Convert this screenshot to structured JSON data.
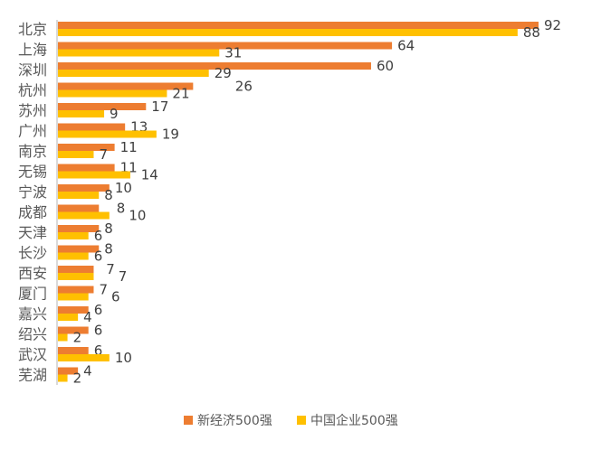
{
  "chart_data": {
    "type": "bar",
    "orientation": "horizontal",
    "categories": [
      "北京",
      "上海",
      "深圳",
      "杭州",
      "苏州",
      "广州",
      "南京",
      "无锡",
      "宁波",
      "成都",
      "天津",
      "长沙",
      "西安",
      "厦门",
      "嘉兴",
      "绍兴",
      "武汉",
      "芜湖"
    ],
    "series": [
      {
        "name": "新经济500强",
        "color": "#ED7D31",
        "values": [
          92,
          64,
          60,
          26,
          17,
          13,
          11,
          11,
          10,
          8,
          8,
          8,
          7,
          7,
          6,
          6,
          6,
          4
        ]
      },
      {
        "name": "中国企业500强",
        "color": "#FFC000",
        "values": [
          88,
          31,
          29,
          21,
          9,
          19,
          7,
          14,
          8,
          10,
          6,
          6,
          7,
          6,
          4,
          2,
          10,
          2
        ]
      }
    ],
    "data_labels": true,
    "grid": false,
    "legend": "bottom",
    "xlim": [
      0,
      92
    ]
  }
}
